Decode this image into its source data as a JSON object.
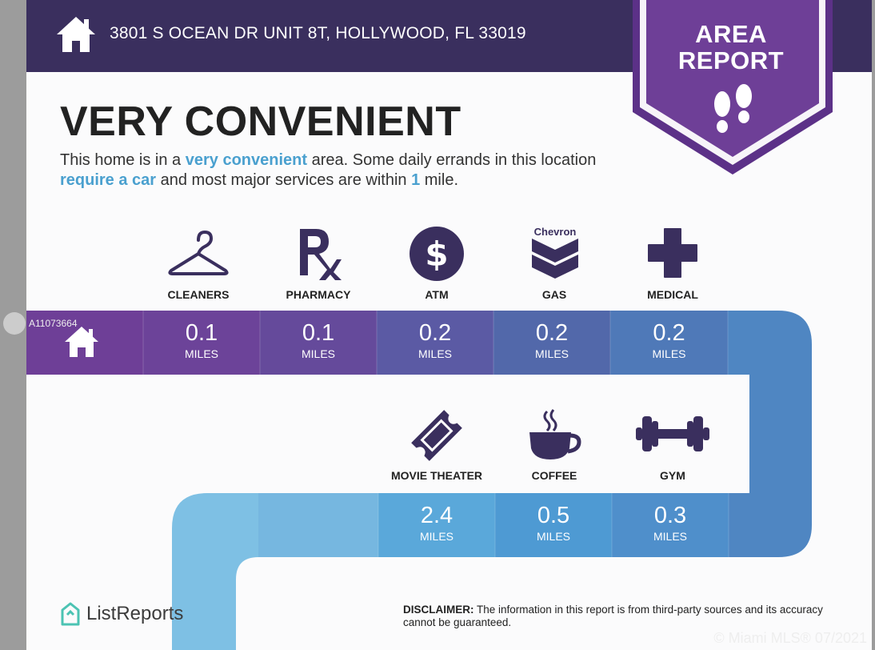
{
  "header": {
    "address": "3801 S OCEAN DR UNIT 8T, HOLLYWOOD, FL 33019",
    "badge_line1": "AREA",
    "badge_line2": "REPORT"
  },
  "rating": {
    "title": "VERY CONVENIENT",
    "desc_part1": "This home is in a ",
    "desc_hl1": "very convenient",
    "desc_part2": " area. Some daily errands in this location ",
    "desc_hl2": "require a car",
    "desc_part3": " and most major services are within ",
    "desc_hl3": "1",
    "desc_part4": " mile."
  },
  "services_row1": [
    {
      "label": "CLEANERS",
      "icon": "hanger-icon",
      "value": "0.1",
      "unit": "MILES"
    },
    {
      "label": "PHARMACY",
      "icon": "rx-icon",
      "value": "0.1",
      "unit": "MILES"
    },
    {
      "label": "ATM",
      "icon": "dollar-icon",
      "value": "0.2",
      "unit": "MILES"
    },
    {
      "label": "GAS",
      "icon": "chevron-logo-icon",
      "brand_text": "Chevron",
      "value": "0.2",
      "unit": "MILES"
    },
    {
      "label": "MEDICAL",
      "icon": "medical-cross-icon",
      "value": "0.2",
      "unit": "MILES"
    }
  ],
  "services_row2": [
    {
      "label": "MOVIE THEATER",
      "icon": "ticket-icon",
      "value": "2.4",
      "unit": "MILES"
    },
    {
      "label": "COFFEE",
      "icon": "coffee-cup-icon",
      "value": "0.5",
      "unit": "MILES"
    },
    {
      "label": "GYM",
      "icon": "dumbbell-icon",
      "value": "0.3",
      "unit": "MILES"
    }
  ],
  "footer": {
    "brand": "ListReports",
    "disclaimer_label": "DISCLAIMER:",
    "disclaimer_text": " The information in this report is from third-party sources and its accuracy cannot be guaranteed."
  },
  "watermark": {
    "listing_id": "A11073664",
    "copyright": "© Miami MLS® 07/2021"
  },
  "colors": {
    "header_bg": "#3a2f5e",
    "badge_purple": "#6e3f97",
    "highlight_blue": "#4aa0cf",
    "icon_dark": "#3a2f5e"
  }
}
